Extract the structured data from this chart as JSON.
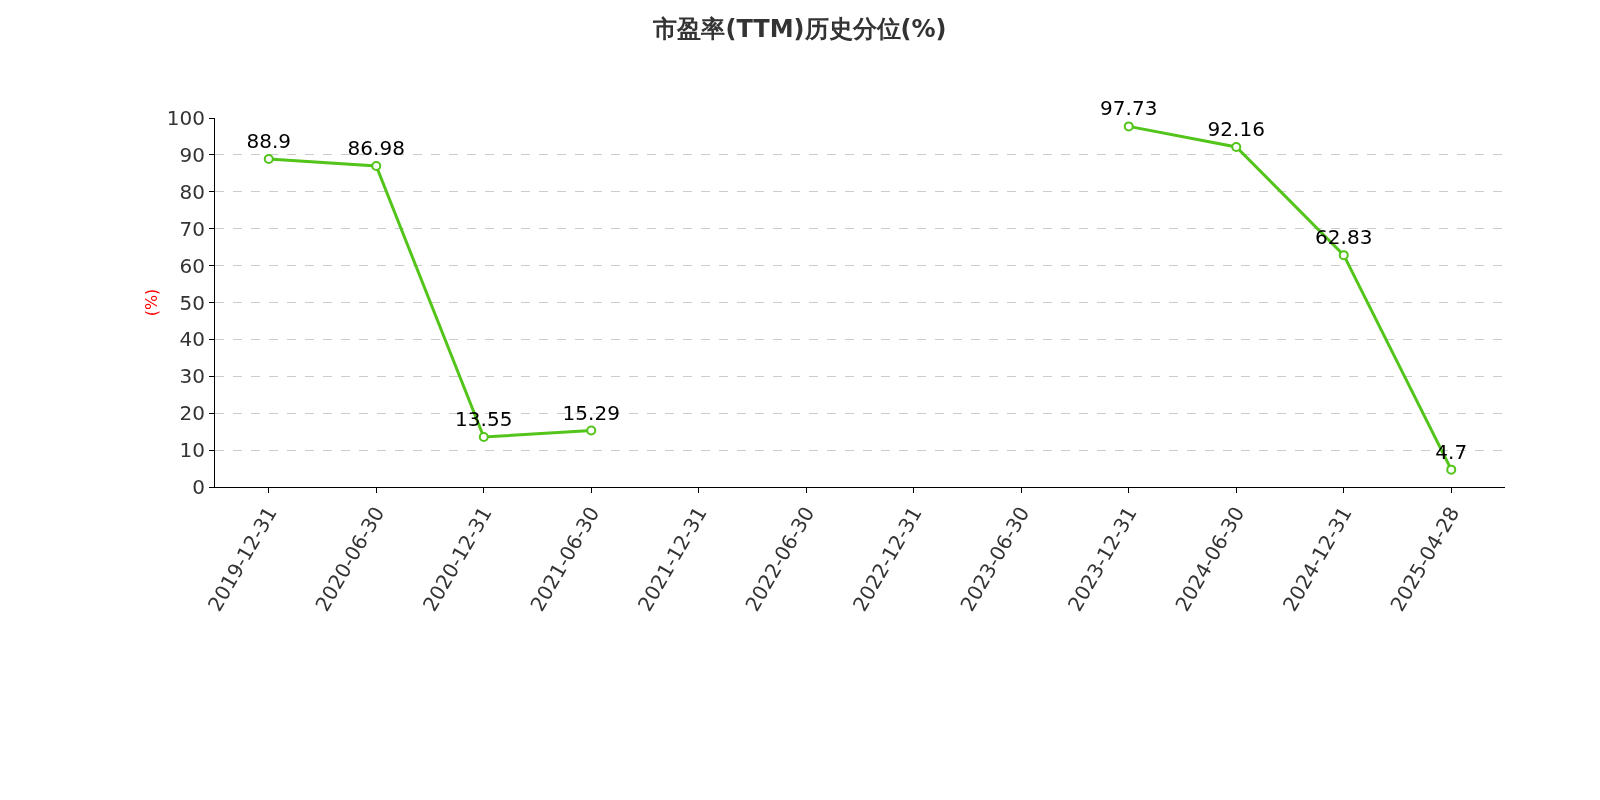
{
  "chart_data": {
    "type": "line",
    "title": "市盈率(TTM)历史分位(%)",
    "ylabel": "(%)",
    "categories": [
      "2019-12-31",
      "2020-06-30",
      "2020-12-31",
      "2021-06-30",
      "2021-12-31",
      "2022-06-30",
      "2022-12-31",
      "2023-06-30",
      "2023-12-31",
      "2024-06-30",
      "2024-12-31",
      "2025-04-28"
    ],
    "series": [
      {
        "color": "#52c41a",
        "values": [
          88.9,
          86.98,
          13.55,
          15.29,
          null,
          null,
          null,
          null,
          97.73,
          92.16,
          62.83,
          4.7
        ]
      }
    ],
    "ylim": [
      0,
      100
    ],
    "yticks": [
      0,
      10,
      20,
      30,
      40,
      50,
      60,
      70,
      80,
      90,
      100
    ],
    "grid": "y",
    "marker": "circle",
    "line_style": "solid",
    "data_labels": true
  }
}
